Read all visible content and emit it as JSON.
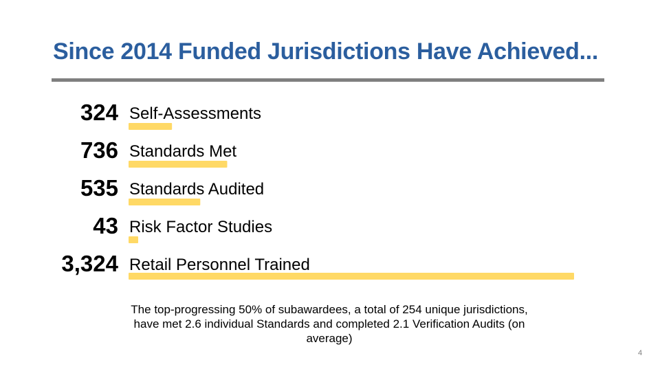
{
  "title": "Since 2014 Funded Jurisdictions Have Achieved...",
  "chart_data": {
    "type": "bar",
    "orientation": "horizontal",
    "categories": [
      "Self-Assessments",
      "Standards Met",
      "Standards Audited",
      "Risk Factor Studies",
      "Retail Personnel Trained"
    ],
    "value_labels": [
      "324",
      "736",
      "535",
      "43",
      "3,324"
    ],
    "values": [
      324,
      736,
      535,
      43,
      3324
    ],
    "bar_color": "#FFD966",
    "grid": false
  },
  "note": "The top-progressing 50% of subawardees, a total of 254 unique jurisdictions, have met 2.6 individual Standards and completed 2.1 Verification Audits (on average)",
  "page_number": "4",
  "colors": {
    "title": "#2B5E9E",
    "rule": "#7F7F7F"
  }
}
